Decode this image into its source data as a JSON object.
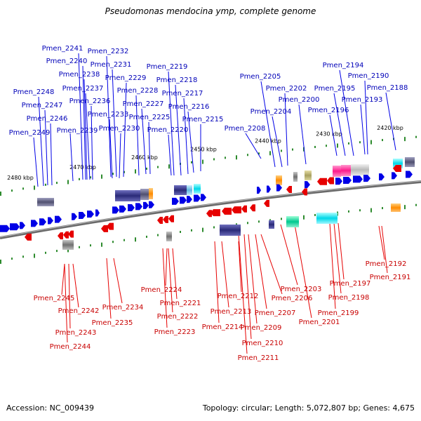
{
  "title": "Pseudomonas mendocina ymp, complete genome",
  "footer": {
    "accession": "Accession: NC_009439",
    "summary": "Topology: circular; Length: 5,072,807 bp; Genes: 4,675"
  },
  "colors": {
    "forward": "#0000e6",
    "reverse": "#e60000",
    "backbone": "#808080",
    "tick": "#2e8b2e"
  },
  "kbp_ticks": [
    "2480 kbp",
    "2470 kbp",
    "2460 kbp",
    "2450 kbp",
    "2440 kbp",
    "2430 kbp",
    "2420 kbp"
  ],
  "forward_labels": [
    "Pmen_2241",
    "Pmen_2240",
    "Pmen_2232",
    "Pmen_2231",
    "Pmen_2238",
    "Pmen_2229",
    "Pmen_2219",
    "Pmen_2248",
    "Pmen_2237",
    "Pmen_2228",
    "Pmen_2218",
    "Pmen_2236",
    "Pmen_2227",
    "Pmen_2217",
    "Pmen_2247",
    "Pmen_2233",
    "Pmen_2216",
    "Pmen_2246",
    "Pmen_2225",
    "Pmen_2215",
    "Pmen_2230",
    "Pmen_2239",
    "Pmen_2220",
    "Pmen_2249",
    "Pmen_2205",
    "Pmen_2202",
    "Pmen_2200",
    "Pmen_2204",
    "Pmen_2208",
    "Pmen_2194",
    "Pmen_2190",
    "Pmen_2195",
    "Pmen_2188",
    "Pmen_2193",
    "Pmen_2196"
  ],
  "reverse_labels": [
    "Pmen_2245",
    "Pmen_2242",
    "Pmen_2243",
    "Pmen_2244",
    "Pmen_2234",
    "Pmen_2235",
    "Pmen_2224",
    "Pmen_2221",
    "Pmen_2222",
    "Pmen_2223",
    "Pmen_2212",
    "Pmen_2213",
    "Pmen_2214",
    "Pmen_2206",
    "Pmen_2207",
    "Pmen_2209",
    "Pmen_2210",
    "Pmen_2211",
    "Pmen_2203",
    "Pmen_2201",
    "Pmen_2199",
    "Pmen_2198",
    "Pmen_2197",
    "Pmen_2192",
    "Pmen_2191"
  ]
}
